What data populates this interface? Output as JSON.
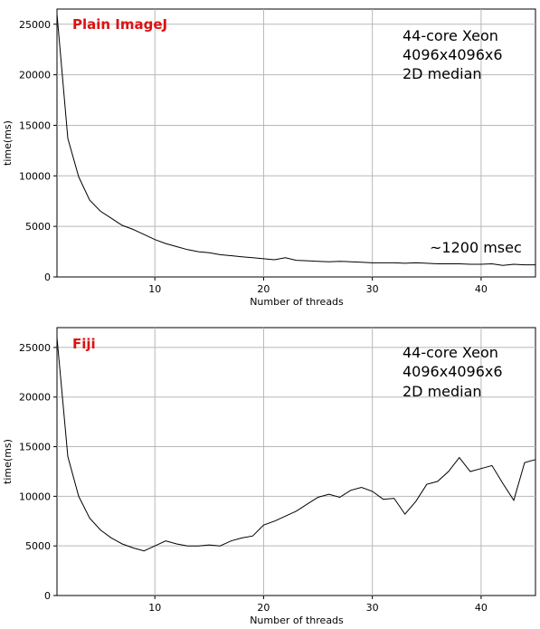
{
  "chart_data": [
    {
      "type": "line",
      "label": "Plain ImageJ",
      "notes": [
        "44-core Xeon",
        "4096x4096x6",
        "2D median"
      ],
      "annotation": "~1200 msec",
      "xlabel": "Number of threads",
      "ylabel": "time(ms)",
      "xlim": [
        1,
        45
      ],
      "ylim": [
        0,
        26500
      ],
      "xticks": [
        10,
        20,
        30,
        40
      ],
      "yticks": [
        0,
        5000,
        10000,
        15000,
        20000,
        25000
      ],
      "grid": true,
      "series": [
        {
          "x": [
            1,
            2,
            3,
            4,
            5,
            6,
            7,
            8,
            9,
            10,
            11,
            12,
            13,
            14,
            15,
            16,
            17,
            18,
            19,
            20,
            21,
            22,
            23,
            24,
            25,
            26,
            27,
            28,
            29,
            30,
            31,
            32,
            33,
            34,
            35,
            36,
            37,
            38,
            39,
            40,
            41,
            42,
            43,
            44,
            45
          ],
          "values": [
            26000,
            13700,
            9900,
            7600,
            6500,
            5800,
            5100,
            4700,
            4200,
            3700,
            3300,
            3000,
            2700,
            2500,
            2400,
            2200,
            2100,
            2000,
            1900,
            1800,
            1700,
            1900,
            1650,
            1600,
            1550,
            1500,
            1550,
            1500,
            1450,
            1400,
            1400,
            1400,
            1350,
            1400,
            1350,
            1300,
            1300,
            1300,
            1250,
            1250,
            1300,
            1150,
            1250,
            1200,
            1200
          ]
        }
      ]
    },
    {
      "type": "line",
      "label": "Fiji",
      "notes": [
        "44-core Xeon",
        "4096x4096x6",
        "2D median"
      ],
      "xlabel": "Number of threads",
      "ylabel": "time(ms)",
      "xlim": [
        1,
        45
      ],
      "ylim": [
        0,
        27000
      ],
      "xticks": [
        10,
        20,
        30,
        40
      ],
      "yticks": [
        0,
        5000,
        10000,
        15000,
        20000,
        25000
      ],
      "grid": true,
      "series": [
        {
          "x": [
            1,
            2,
            3,
            4,
            5,
            6,
            7,
            8,
            9,
            10,
            11,
            12,
            13,
            14,
            15,
            16,
            17,
            18,
            19,
            20,
            21,
            22,
            23,
            24,
            25,
            26,
            27,
            28,
            29,
            30,
            31,
            32,
            33,
            34,
            35,
            36,
            37,
            38,
            39,
            40,
            41,
            42,
            43,
            44,
            45
          ],
          "values": [
            26000,
            14000,
            10000,
            7800,
            6600,
            5800,
            5200,
            4800,
            4500,
            5000,
            5500,
            5200,
            5000,
            5000,
            5100,
            5000,
            5500,
            5800,
            6000,
            7100,
            7500,
            8000,
            8500,
            9200,
            9900,
            10200,
            9900,
            10600,
            10900,
            10500,
            9700,
            9800,
            8200,
            9500,
            11200,
            11500,
            12500,
            13900,
            12500,
            12800,
            13100,
            11300,
            9600,
            13400,
            13700
          ]
        }
      ]
    }
  ]
}
